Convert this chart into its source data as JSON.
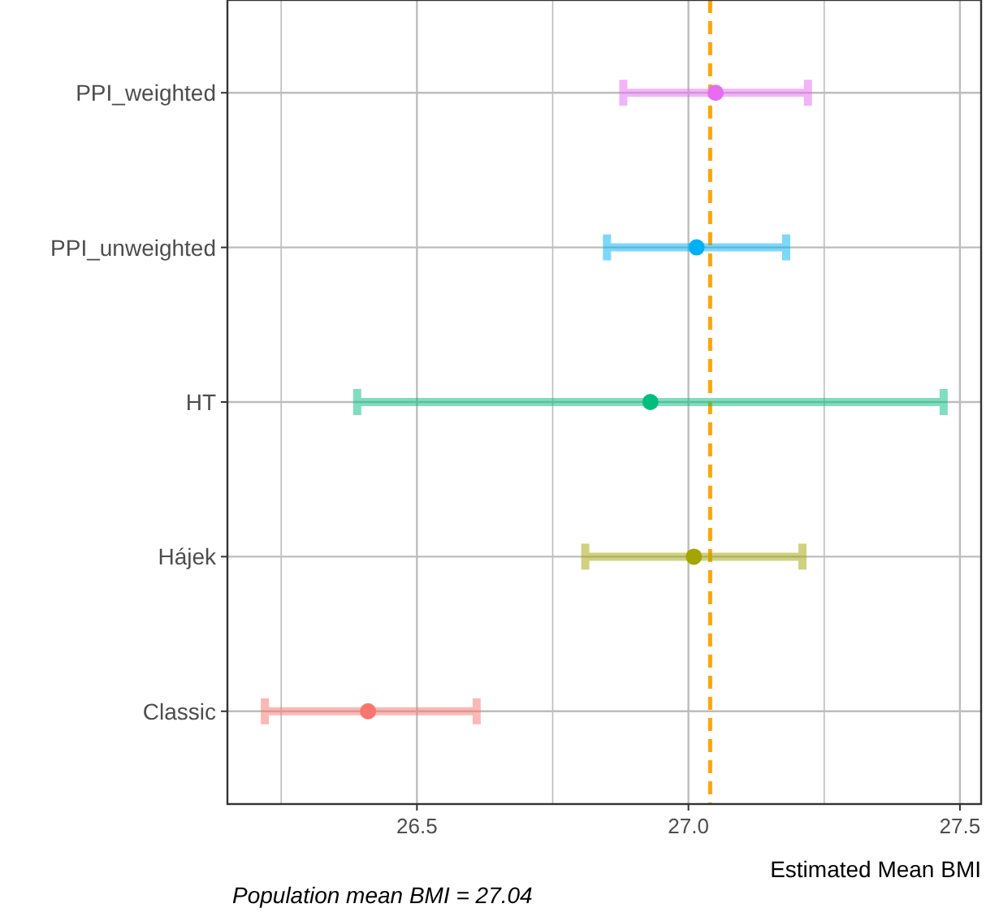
{
  "chart_data": {
    "type": "scatter",
    "orientation": "horizontal",
    "xlabel": "Estimated Mean BMI",
    "categories": [
      "PPI_weighted",
      "PPI_unweighted",
      "HT",
      "Hájek",
      "Classic"
    ],
    "values": [
      27.05,
      27.015,
      26.93,
      27.01,
      26.41
    ],
    "errors": [
      [
        26.88,
        27.22
      ],
      [
        26.85,
        27.18
      ],
      [
        26.39,
        27.47
      ],
      [
        26.81,
        27.21
      ],
      [
        26.22,
        26.61
      ]
    ],
    "colors": [
      "#e76bf3",
      "#00b0f6",
      "#00bf7d",
      "#a3a500",
      "#f8766d"
    ],
    "xlim": [
      26.151,
      27.539
    ],
    "xticks": [
      {
        "value": 26.25,
        "label": null
      },
      26.5,
      {
        "value": 26.75,
        "label": null
      },
      {
        "value": 27,
        "label": "27.0"
      },
      {
        "value": 27.25,
        "label": null
      },
      27.5
    ],
    "grid": true,
    "marker": "circle",
    "ref_lines": [
      {
        "axis": "x",
        "value": 27.04,
        "color": "#ffa500",
        "line_style": "dashed"
      }
    ],
    "annotations": [
      "Population mean BMI = 27.04"
    ]
  }
}
